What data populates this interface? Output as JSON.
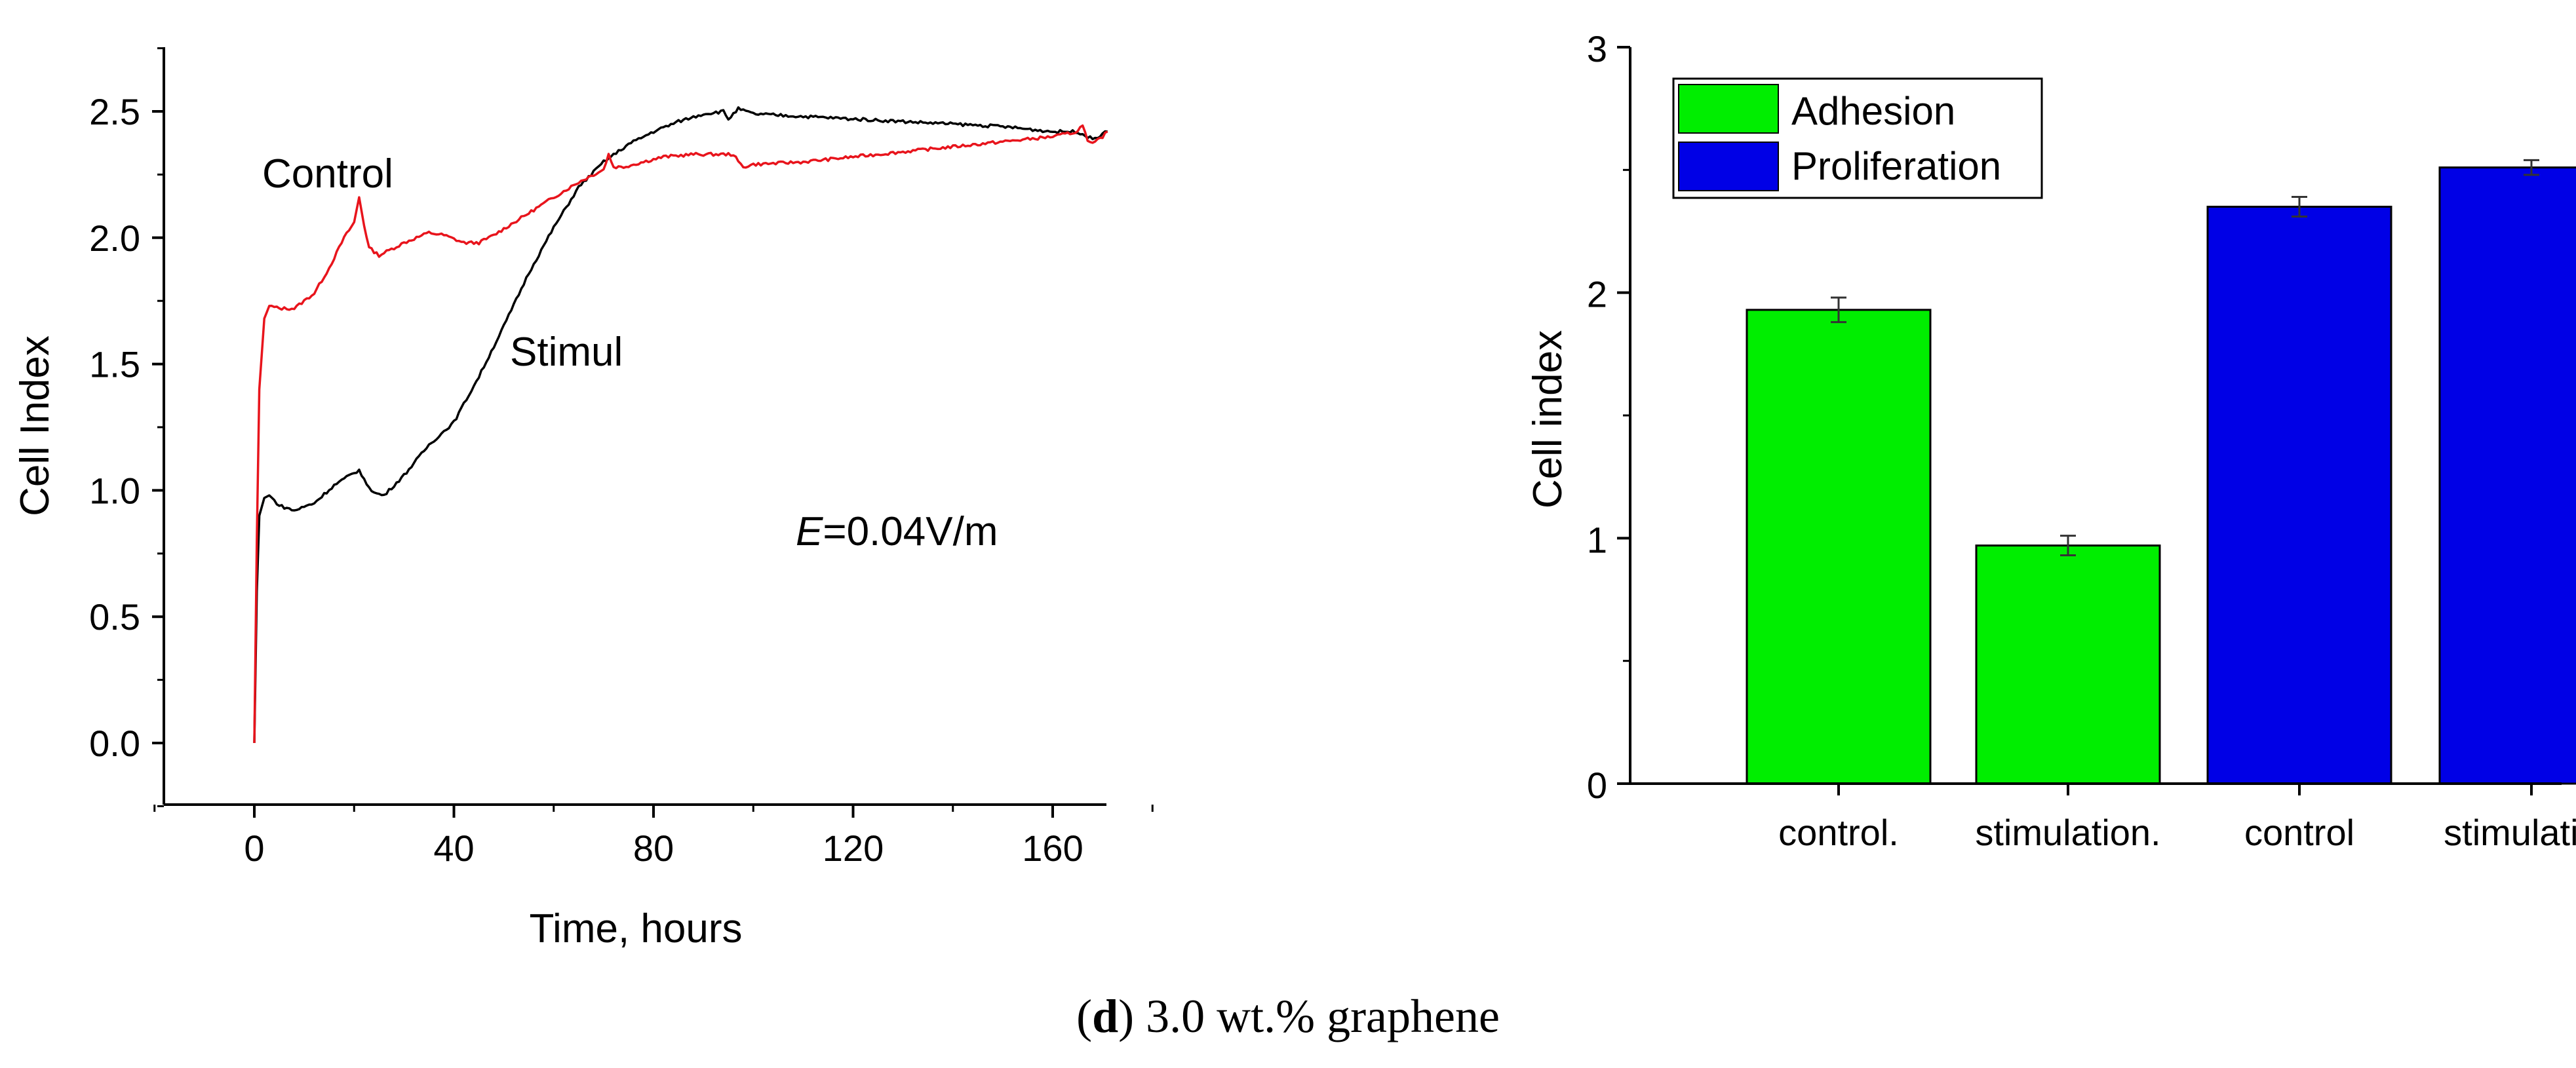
{
  "caption": {
    "letter": "d",
    "open": "(",
    "close": ")",
    "text": " 3.0 wt.% graphene"
  },
  "chart_data": [
    {
      "type": "line",
      "xlabel": "Time, hours",
      "ylabel": "Cell Index",
      "xlim": [
        -20,
        190
      ],
      "ylim": [
        -0.25,
        2.75
      ],
      "xticks": [
        0,
        40,
        80,
        120,
        160
      ],
      "yticks": [
        0.0,
        0.5,
        1.0,
        1.5,
        2.0,
        2.5
      ],
      "ytick_labels": [
        "0.0",
        "0.5",
        "1.0",
        "1.5",
        "2.0",
        "2.5"
      ],
      "annotations": {
        "control": "Control",
        "stimul": "Stimul",
        "field_symbol": "E",
        "field_value": "=0.04V/m"
      },
      "series": [
        {
          "name": "Control",
          "color": "#e8141c",
          "x": [
            0,
            0.5,
            1,
            2,
            3,
            5,
            8,
            12,
            15,
            18,
            20,
            21,
            22,
            23,
            25,
            27,
            30,
            35,
            38,
            42,
            45,
            48,
            52,
            56,
            60,
            65,
            70,
            71,
            72,
            74,
            78,
            82,
            88,
            94,
            96,
            97,
            98,
            100,
            110,
            120,
            130,
            140,
            150,
            160,
            165,
            166,
            167,
            168,
            170,
            171
          ],
          "y": [
            0.0,
            0.8,
            1.4,
            1.68,
            1.73,
            1.72,
            1.72,
            1.78,
            1.88,
            2.0,
            2.06,
            2.16,
            2.05,
            1.96,
            1.93,
            1.95,
            1.98,
            2.02,
            2.01,
            1.98,
            1.98,
            2.01,
            2.06,
            2.11,
            2.16,
            2.22,
            2.27,
            2.33,
            2.28,
            2.28,
            2.3,
            2.32,
            2.33,
            2.33,
            2.33,
            2.3,
            2.28,
            2.29,
            2.3,
            2.32,
            2.34,
            2.36,
            2.38,
            2.4,
            2.42,
            2.45,
            2.38,
            2.37,
            2.4,
            2.42
          ]
        },
        {
          "name": "Stimul",
          "color": "#000000",
          "x": [
            0,
            0.5,
            1,
            2,
            3,
            5,
            8,
            12,
            16,
            20,
            21,
            22,
            24,
            26,
            30,
            35,
            40,
            45,
            50,
            55,
            60,
            65,
            70,
            75,
            80,
            85,
            90,
            94,
            95,
            97,
            100,
            110,
            120,
            130,
            140,
            150,
            160,
            165,
            167,
            168,
            170,
            171
          ],
          "y": [
            0.0,
            0.6,
            0.9,
            0.97,
            0.98,
            0.94,
            0.92,
            0.95,
            1.02,
            1.07,
            1.08,
            1.04,
            0.99,
            0.98,
            1.06,
            1.18,
            1.27,
            1.45,
            1.65,
            1.86,
            2.04,
            2.2,
            2.3,
            2.37,
            2.42,
            2.46,
            2.49,
            2.5,
            2.47,
            2.51,
            2.49,
            2.48,
            2.47,
            2.46,
            2.45,
            2.44,
            2.42,
            2.42,
            2.4,
            2.39,
            2.41,
            2.42
          ]
        }
      ]
    },
    {
      "type": "bar",
      "ylabel": "Cell index",
      "categories": [
        "control.",
        "stimulation.",
        "control",
        "stimulation"
      ],
      "values": [
        1.93,
        0.97,
        2.35,
        2.51
      ],
      "errors": [
        0.05,
        0.04,
        0.04,
        0.03
      ],
      "groups": [
        "Adhesion",
        "Adhesion",
        "Proliferation",
        "Proliferation"
      ],
      "ylim": [
        0,
        3
      ],
      "yticks": [
        0,
        1,
        2,
        3
      ],
      "legend": [
        {
          "name": "Adhesion",
          "color": "#00ee00"
        },
        {
          "name": "Proliferation",
          "color": "#0000e6"
        }
      ],
      "legend_position": "top-left"
    }
  ]
}
